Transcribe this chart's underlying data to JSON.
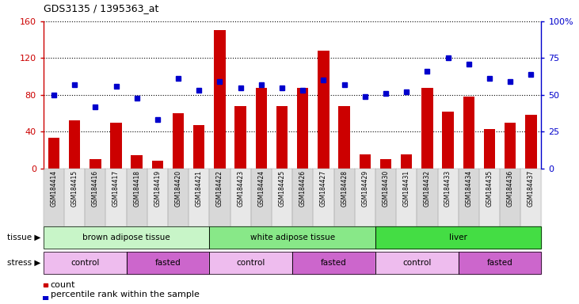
{
  "title": "GDS3135 / 1395363_at",
  "samples": [
    "GSM184414",
    "GSM184415",
    "GSM184416",
    "GSM184417",
    "GSM184418",
    "GSM184419",
    "GSM184420",
    "GSM184421",
    "GSM184422",
    "GSM184423",
    "GSM184424",
    "GSM184425",
    "GSM184426",
    "GSM184427",
    "GSM184428",
    "GSM184429",
    "GSM184430",
    "GSM184431",
    "GSM184432",
    "GSM184433",
    "GSM184434",
    "GSM184435",
    "GSM184436",
    "GSM184437"
  ],
  "counts": [
    33,
    52,
    10,
    50,
    14,
    8,
    60,
    47,
    150,
    68,
    88,
    68,
    88,
    128,
    68,
    15,
    10,
    15,
    88,
    62,
    78,
    43,
    50,
    58
  ],
  "percentile": [
    50,
    57,
    42,
    56,
    48,
    33,
    61,
    53,
    59,
    55,
    57,
    55,
    53,
    60,
    57,
    49,
    51,
    52,
    66,
    75,
    71,
    61,
    59,
    64
  ],
  "bar_color": "#cc0000",
  "dot_color": "#0000cc",
  "ylim_left": [
    0,
    160
  ],
  "ylim_right": [
    0,
    100
  ],
  "yticks_left": [
    0,
    40,
    80,
    120,
    160
  ],
  "yticks_right": [
    0,
    25,
    50,
    75,
    100
  ],
  "ytick_right_labels": [
    "0",
    "25",
    "50",
    "75",
    "100%"
  ],
  "tissue_groups": [
    {
      "label": "brown adipose tissue",
      "start": 0,
      "end": 8,
      "color": "#c8f5c8"
    },
    {
      "label": "white adipose tissue",
      "start": 8,
      "end": 16,
      "color": "#88e888"
    },
    {
      "label": "liver",
      "start": 16,
      "end": 24,
      "color": "#44dd44"
    }
  ],
  "stress_groups": [
    {
      "label": "control",
      "start": 0,
      "end": 4,
      "color": "#eebcee"
    },
    {
      "label": "fasted",
      "start": 4,
      "end": 8,
      "color": "#cc66cc"
    },
    {
      "label": "control",
      "start": 8,
      "end": 12,
      "color": "#eebcee"
    },
    {
      "label": "fasted",
      "start": 12,
      "end": 16,
      "color": "#cc66cc"
    },
    {
      "label": "control",
      "start": 16,
      "end": 20,
      "color": "#eebcee"
    },
    {
      "label": "fasted",
      "start": 20,
      "end": 24,
      "color": "#cc66cc"
    }
  ],
  "tick_bg_even": "#d8d8d8",
  "tick_bg_odd": "#e8e8e8",
  "legend_count_label": "count",
  "legend_pct_label": "percentile rank within the sample",
  "tissue_label": "tissue ▶",
  "stress_label": "stress ▶"
}
